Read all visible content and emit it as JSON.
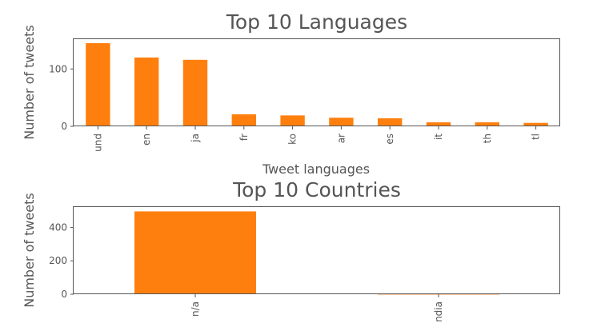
{
  "chart_data": [
    {
      "type": "bar",
      "title": "Top 10 Languages",
      "xlabel": "Tweet languages",
      "ylabel": "Number of tweets",
      "categories": [
        "und",
        "en",
        "ja",
        "fr",
        "ko",
        "ar",
        "es",
        "it",
        "th",
        "tl"
      ],
      "values": [
        145,
        120,
        116,
        21,
        19,
        15,
        14,
        7,
        7,
        6
      ],
      "ylim": [
        0,
        152
      ],
      "yticks": [
        0,
        100
      ],
      "grid": false,
      "color": "#ff7f0e"
    },
    {
      "type": "bar",
      "title": "Top 10 Countries",
      "xlabel": "",
      "ylabel": "Number of tweets",
      "categories": [
        "n/a",
        "ndia"
      ],
      "values": [
        496,
        2
      ],
      "ylim": [
        0,
        522
      ],
      "yticks": [
        0,
        200,
        400
      ],
      "grid": false,
      "color": "#ff7f0e"
    }
  ]
}
